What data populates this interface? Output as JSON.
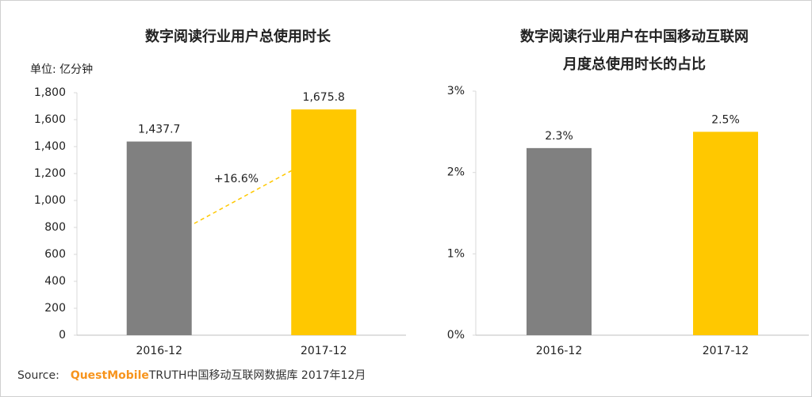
{
  "chart_data": [
    {
      "type": "bar",
      "title": "数字阅读行业用户总使用时长",
      "unit": "单位: 亿分钟",
      "categories": [
        "2016-12",
        "2017-12"
      ],
      "values": [
        1437.7,
        1675.8
      ],
      "value_labels": [
        "1,437.7",
        "1,675.8"
      ],
      "colors": [
        "#808080",
        "#ffc800"
      ],
      "annotation": "+16.6%",
      "ylim": [
        0,
        1800
      ],
      "yticks": [
        0,
        200,
        400,
        600,
        800,
        {
          "value": 1000,
          "label": "1,000"
        },
        {
          "value": 1200,
          "label": "1,200"
        },
        {
          "value": 1400,
          "label": "1,400"
        },
        {
          "value": 1600,
          "label": "1,600"
        },
        {
          "value": 1800,
          "label": "1,800"
        }
      ],
      "grid": false
    },
    {
      "type": "bar",
      "title": [
        "数字阅读行业用户在中国移动互联网",
        "月度总使用时长的占比"
      ],
      "categories": [
        "2016-12",
        "2017-12"
      ],
      "values": [
        2.3,
        2.5
      ],
      "value_labels": [
        "2.3%",
        "2.5%"
      ],
      "colors": [
        "#808080",
        "#ffc800"
      ],
      "ylim": [
        0,
        3
      ],
      "yticks": [
        {
          "value": 0,
          "label": "0%"
        },
        {
          "value": 1,
          "label": "1%"
        },
        {
          "value": 2,
          "label": "2%"
        },
        {
          "value": 3,
          "label": "3%"
        }
      ],
      "grid": false
    }
  ],
  "source": {
    "label": "Source:",
    "brand": "QuestMobile",
    "text": "TRUTH中国移动互联网数据库 2017年12月"
  }
}
